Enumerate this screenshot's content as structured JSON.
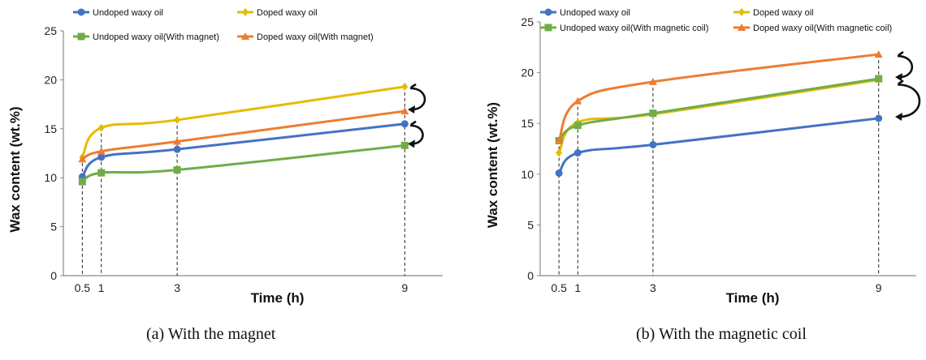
{
  "chart_data": [
    {
      "type": "line",
      "caption": "(a)   With the magnet",
      "xlabel": "Time (h)",
      "ylabel": "Wax content (wt.%)",
      "ylim": [
        0,
        25
      ],
      "yticks": [
        0,
        5,
        10,
        15,
        20,
        25
      ],
      "xlim": [
        0,
        10
      ],
      "xticks": [
        "0.5",
        "1",
        "3",
        "9"
      ],
      "x": [
        0.5,
        1,
        3,
        9
      ],
      "legend_position": "top",
      "series": [
        {
          "name": "Undoped waxy oil",
          "color": "#4472c4",
          "marker": "circle",
          "values": [
            10.1,
            12.1,
            12.9,
            15.5
          ]
        },
        {
          "name": "Doped waxy oil",
          "color": "#e6bb00",
          "marker": "diamond",
          "values": [
            12.1,
            15.1,
            15.9,
            19.3
          ]
        },
        {
          "name": "Undoped waxy oil(With magnet)",
          "color": "#70ad47",
          "marker": "square",
          "values": [
            9.6,
            10.5,
            10.8,
            13.3
          ]
        },
        {
          "name": "Doped waxy oil(With magnet)",
          "color": "#ed7d31",
          "marker": "triangle",
          "values": [
            11.9,
            12.7,
            13.7,
            16.8
          ]
        }
      ],
      "annotations": "curved arrows at x=9 between Doped/Doped(With magnet) and Undoped/Undoped(With magnet)"
    },
    {
      "type": "line",
      "caption": "(b)   With the magnetic coil",
      "xlabel": "Time (h)",
      "ylabel": "Wax content (wt.%)",
      "ylim": [
        0,
        25
      ],
      "yticks": [
        0,
        5,
        10,
        15,
        20,
        25
      ],
      "xlim": [
        0,
        10
      ],
      "xticks": [
        "0.5",
        "1",
        "3",
        "9"
      ],
      "x": [
        0.5,
        1,
        3,
        9
      ],
      "legend_position": "top",
      "series": [
        {
          "name": "Undoped waxy oil",
          "color": "#4472c4",
          "marker": "circle",
          "values": [
            10.1,
            12.1,
            12.9,
            15.5
          ]
        },
        {
          "name": "Doped waxy oil",
          "color": "#e6bb00",
          "marker": "diamond",
          "values": [
            12.1,
            15.1,
            15.9,
            19.3
          ]
        },
        {
          "name": "Undoped waxy oil(With magnetic coil)",
          "color": "#70ad47",
          "marker": "square",
          "values": [
            13.3,
            14.8,
            16.0,
            19.4
          ]
        },
        {
          "name": "Doped waxy oil(With magnetic coil)",
          "color": "#ed7d31",
          "marker": "triangle",
          "values": [
            13.3,
            17.2,
            19.1,
            21.8
          ]
        }
      ],
      "annotations": "curved arrows at x=9 between Doped(With magnetic coil)/Undoped(With magnetic coil) and Doped/Undoped"
    }
  ]
}
